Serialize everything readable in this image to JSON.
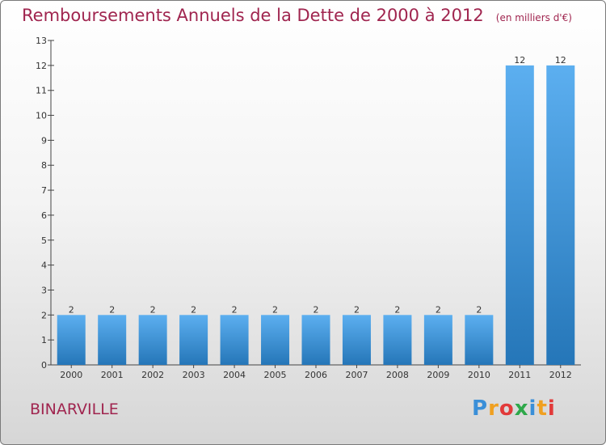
{
  "header": {
    "title": "Remboursements Annuels de la Dette de 2000 à 2012",
    "unit": "(en milliers d'€)"
  },
  "commune": "BINARVILLE",
  "brand": {
    "letters": [
      "P",
      "r",
      "o",
      "x",
      "i",
      "t",
      "i"
    ],
    "colors": [
      "#3a8fd8",
      "#f0a020",
      "#e23a3a",
      "#2ea84a",
      "#3a8fd8",
      "#f0a020",
      "#e23a3a"
    ]
  },
  "chart_data": {
    "type": "bar",
    "categories": [
      "2000",
      "2001",
      "2002",
      "2003",
      "2004",
      "2005",
      "2006",
      "2007",
      "2008",
      "2009",
      "2010",
      "2011",
      "2012"
    ],
    "values": [
      2,
      2,
      2,
      2,
      2,
      2,
      2,
      2,
      2,
      2,
      2,
      12,
      12
    ],
    "ylim": [
      0,
      13
    ],
    "yticks": [
      0,
      1,
      2,
      3,
      4,
      5,
      6,
      7,
      8,
      9,
      10,
      11,
      12,
      13
    ],
    "grid": false,
    "bar_color": "#4a9ee0"
  }
}
